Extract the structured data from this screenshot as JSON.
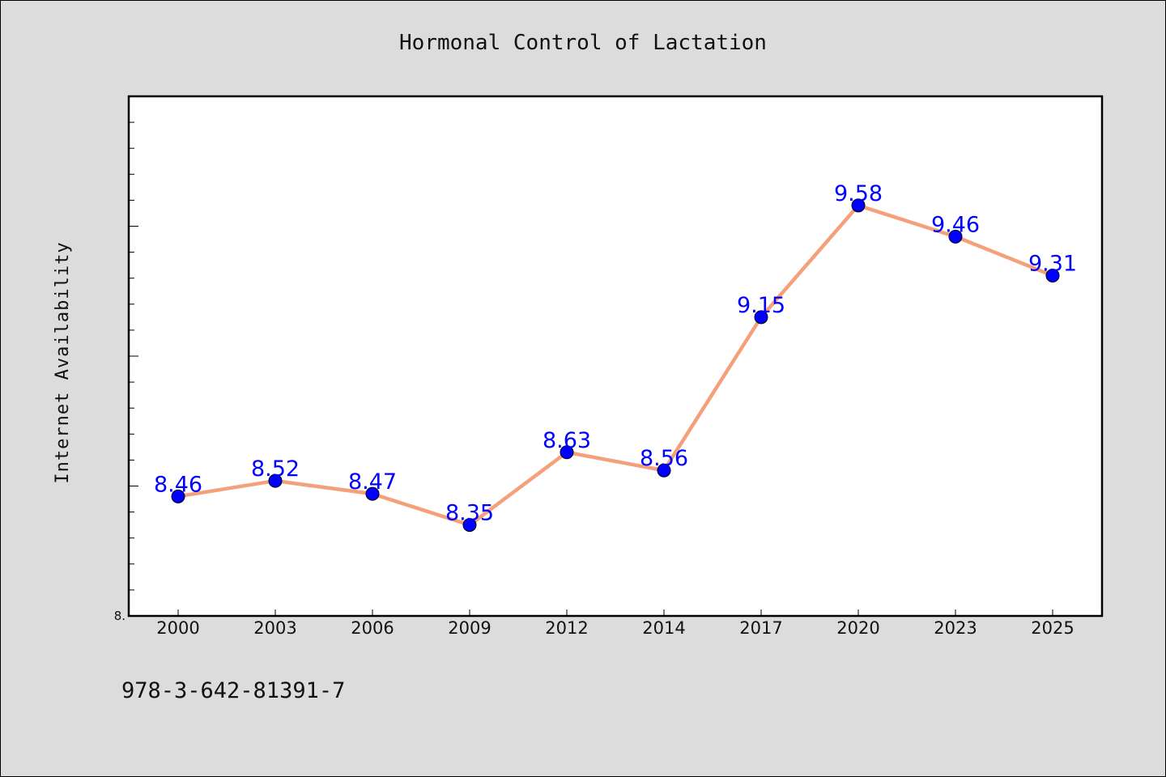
{
  "chart_data": {
    "type": "line",
    "title": "Hormonal Control of Lactation",
    "xlabel": "",
    "ylabel": "Internet Availability",
    "categories": [
      "2000",
      "2003",
      "2006",
      "2009",
      "2012",
      "2014",
      "2017",
      "2020",
      "2023",
      "2025"
    ],
    "series": [
      {
        "values": [
          8.46,
          8.52,
          8.47,
          8.35,
          8.63,
          8.56,
          9.15,
          9.58,
          9.46,
          9.31
        ],
        "labels": [
          "8.46",
          "8.52",
          "8.47",
          "8.35",
          "8.63",
          "8.56",
          "9.15",
          "9.58",
          "9.46",
          "9.31"
        ],
        "line_color": "#f4a07a",
        "marker_color": "#0000ff"
      }
    ],
    "ylim": [
      8.0,
      10.0
    ],
    "y_tick_label": "8.",
    "grid": false,
    "legend": "none"
  },
  "footer_text": "978-3-642-81391-7",
  "colors": {
    "background": "#dcdcdc",
    "plot_background": "#ffffff",
    "data_label": "#0000ff"
  }
}
